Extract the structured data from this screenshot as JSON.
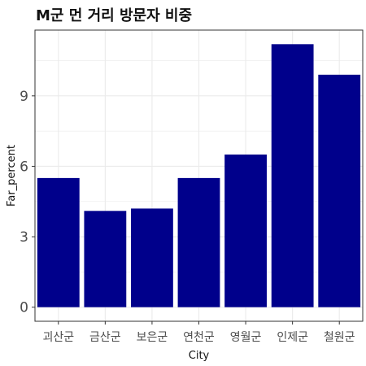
{
  "chart_data": {
    "type": "bar",
    "title": "M군 먼 거리 방문자 비중",
    "xlabel": "City",
    "ylabel": "Far_percent",
    "categories": [
      "괴산군",
      "금산군",
      "보은군",
      "연천군",
      "영월군",
      "인제군",
      "철원군"
    ],
    "values": [
      5.5,
      4.1,
      4.2,
      5.5,
      6.5,
      11.2,
      9.9
    ],
    "yticks": [
      0,
      3,
      6,
      9
    ],
    "ytick_labels": [
      "0",
      "3",
      "6",
      "9"
    ],
    "ylim": [
      -0.6,
      11.8
    ],
    "grid": true,
    "bar_color": "#00008B",
    "panel_border_color": "#333333",
    "grid_color": "#EBEBEB"
  }
}
